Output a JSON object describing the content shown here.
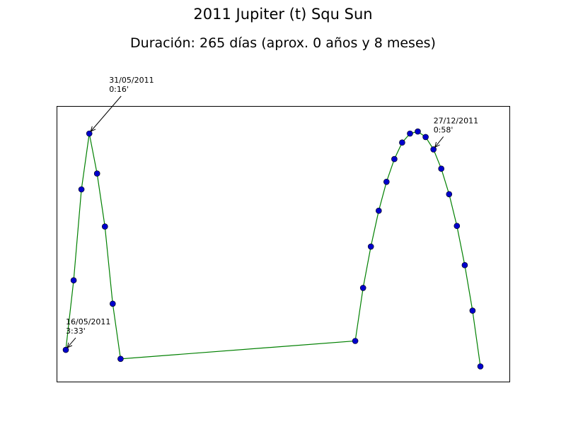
{
  "chart_data": {
    "type": "line",
    "title": "2011 Jupiter (t) Squ Sun",
    "subtitle": "Duración: 265 días (aprox. 0 años y 8 meses)",
    "xlabel": "",
    "ylabel": "",
    "grid": false,
    "legend": "none",
    "x_axis_ticks_shown": false,
    "y_axis_ticks_shown": false,
    "line_color": "#008000",
    "marker_color": "#0000cc",
    "x_unit": "day index",
    "y_unit": "orb",
    "xlim": [
      0,
      265
    ],
    "ylim": [
      0,
      4.0
    ],
    "series": [
      {
        "points": [
          [
            0,
            0.46
          ],
          [
            5,
            1.47
          ],
          [
            10,
            2.79
          ],
          [
            15,
            3.6
          ],
          [
            20,
            3.02
          ],
          [
            25,
            2.25
          ],
          [
            30,
            1.13
          ],
          [
            35,
            0.33
          ],
          [
            185,
            0.59
          ],
          [
            190,
            1.36
          ],
          [
            195,
            1.96
          ],
          [
            200,
            2.48
          ],
          [
            205,
            2.9
          ],
          [
            210,
            3.23
          ],
          [
            215,
            3.47
          ],
          [
            220,
            3.6
          ],
          [
            225,
            3.63
          ],
          [
            230,
            3.55
          ],
          [
            235,
            3.37
          ],
          [
            240,
            3.09
          ],
          [
            245,
            2.72
          ],
          [
            250,
            2.26
          ],
          [
            255,
            1.69
          ],
          [
            260,
            1.03
          ],
          [
            265,
            0.22
          ]
        ]
      }
    ],
    "annotations": [
      {
        "index": 0,
        "line1": "16/05/2011",
        "line2": "3:33'"
      },
      {
        "index": 3,
        "line1": "31/05/2011",
        "line2": "0:16'"
      },
      {
        "index": 18,
        "line1": "27/12/2011",
        "line2": "0:58'"
      }
    ]
  }
}
